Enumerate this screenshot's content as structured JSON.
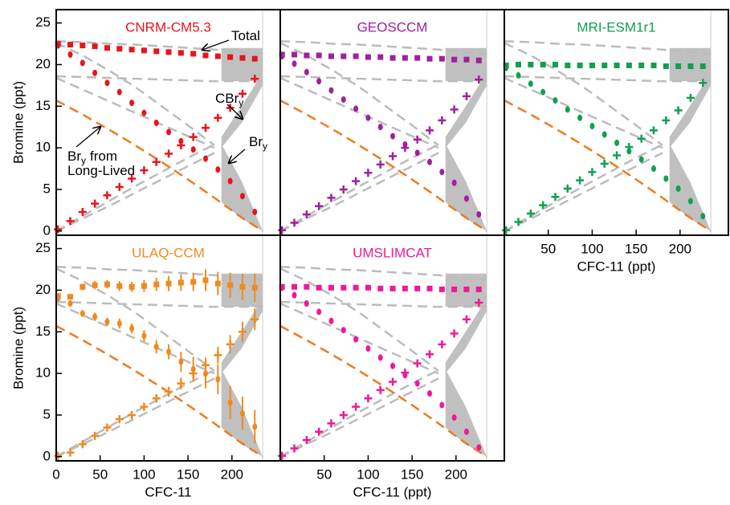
{
  "chart_data": [
    {
      "type": "scatter",
      "title": "CNRM-CM5.3",
      "color": "#e8141c",
      "y_label": "Bromine (ppt)",
      "ylim": [
        -0.5,
        26.6
      ],
      "xlim": [
        0,
        255
      ],
      "yticks": [
        0,
        5,
        10,
        15,
        20,
        25
      ],
      "x": [
        2,
        16,
        30,
        44,
        58,
        72,
        86,
        100,
        114,
        128,
        142,
        156,
        170,
        184,
        198,
        212,
        226
      ],
      "series": [
        {
          "marker": "square",
          "values": [
            22.5,
            22.4,
            22.3,
            22.2,
            22.0,
            21.9,
            21.8,
            21.7,
            21.6,
            21.5,
            21.4,
            21.3,
            21.1,
            21.0,
            20.9,
            20.8,
            20.7
          ]
        },
        {
          "marker": "plus",
          "values": [
            0.2,
            1.2,
            2.3,
            3.3,
            4.3,
            5.3,
            6.3,
            7.3,
            8.3,
            9.3,
            10.3,
            11.3,
            12.4,
            13.6,
            14.8,
            16.5,
            18.3
          ]
        },
        {
          "marker": "circle",
          "values": [
            22.3,
            21.2,
            20.2,
            19.0,
            17.8,
            16.7,
            15.4,
            14.2,
            13.0,
            11.9,
            10.8,
            9.8,
            8.7,
            7.4,
            6.0,
            4.2,
            2.3
          ]
        }
      ],
      "annotations": [
        {
          "text": "Total"
        },
        {
          "text": "CBr",
          "sub": "y"
        },
        {
          "text": "Br",
          "sub": "y"
        },
        {
          "text": "Br",
          "sub": "y",
          "tail": "from"
        },
        {
          "text": "Long-Lived"
        }
      ]
    },
    {
      "type": "scatter",
      "title": "GEOSCCM",
      "color": "#a020a0",
      "ylim": [
        -0.5,
        26.6
      ],
      "xlim": [
        0,
        255
      ],
      "x": [
        2,
        16,
        30,
        44,
        58,
        72,
        86,
        100,
        114,
        128,
        142,
        156,
        170,
        184,
        198,
        212,
        226
      ],
      "series": [
        {
          "marker": "square",
          "values": [
            21.2,
            21.2,
            21.1,
            21.1,
            21.0,
            21.0,
            21.0,
            20.9,
            20.9,
            20.8,
            20.8,
            20.8,
            20.7,
            20.7,
            20.6,
            20.6,
            20.5
          ]
        },
        {
          "marker": "plus",
          "values": [
            0.1,
            1.0,
            2.0,
            3.0,
            4.0,
            5.0,
            6.0,
            7.0,
            8.0,
            9.0,
            10.0,
            11.0,
            12.1,
            13.3,
            14.6,
            16.2,
            18.2
          ]
        },
        {
          "marker": "circle",
          "values": [
            21.0,
            20.1,
            19.1,
            18.0,
            16.9,
            15.8,
            14.7,
            13.6,
            12.5,
            11.4,
            10.4,
            9.4,
            8.3,
            7.1,
            5.8,
            3.9,
            2.0
          ]
        }
      ]
    },
    {
      "type": "scatter",
      "title": "MRI-ESM1r1",
      "color": "#10a050",
      "x_label": "CFC-11 (ppt)",
      "ylim": [
        -0.5,
        26.6
      ],
      "xlim": [
        0,
        255
      ],
      "xticks": [
        50,
        100,
        150,
        200
      ],
      "x": [
        2,
        16,
        30,
        44,
        58,
        72,
        86,
        100,
        114,
        128,
        142,
        156,
        170,
        184,
        198,
        212,
        226
      ],
      "series": [
        {
          "marker": "square",
          "values": [
            19.9,
            20.0,
            20.0,
            20.0,
            20.0,
            19.9,
            19.9,
            19.9,
            19.9,
            19.9,
            19.9,
            19.9,
            19.9,
            19.8,
            19.8,
            19.8,
            19.8
          ]
        },
        {
          "marker": "plus",
          "values": [
            0.1,
            1.1,
            2.1,
            3.1,
            4.1,
            5.1,
            6.1,
            7.1,
            8.1,
            9.1,
            10.1,
            11.1,
            12.1,
            13.3,
            14.5,
            16.0,
            17.8
          ]
        },
        {
          "marker": "circle",
          "values": [
            19.6,
            18.7,
            17.7,
            16.7,
            15.7,
            14.6,
            13.6,
            12.6,
            11.6,
            10.6,
            9.6,
            8.6,
            7.5,
            6.3,
            5.1,
            3.6,
            1.8
          ]
        }
      ]
    },
    {
      "type": "scatter",
      "title": "ULAQ-CCM",
      "color": "#f08a1e",
      "y_label": "Bromine (ppt)",
      "x_label": "CFC-11",
      "ylim": [
        -0.5,
        26.6
      ],
      "xlim": [
        0,
        255
      ],
      "yticks": [
        0,
        5,
        10,
        15,
        20,
        25
      ],
      "xticks": [
        0,
        50,
        100,
        150,
        200
      ],
      "x": [
        2,
        16,
        30,
        44,
        58,
        72,
        86,
        100,
        114,
        128,
        142,
        156,
        170,
        184,
        198,
        212,
        226
      ],
      "series": [
        {
          "marker": "square",
          "values": [
            19.3,
            19.2,
            20.4,
            20.6,
            20.7,
            20.5,
            20.4,
            20.5,
            20.7,
            20.8,
            20.9,
            21.0,
            21.2,
            20.8,
            20.6,
            20.4,
            20.3
          ],
          "errors": [
            0.3,
            0.3,
            0.4,
            0.5,
            0.5,
            0.6,
            0.6,
            0.7,
            0.8,
            0.9,
            1.0,
            1.1,
            1.3,
            1.4,
            1.5,
            1.6,
            1.7
          ]
        },
        {
          "marker": "plus",
          "values": [
            0.1,
            0.5,
            1.5,
            2.5,
            3.5,
            4.5,
            5.0,
            6.0,
            7.0,
            7.8,
            8.8,
            10.0,
            11.0,
            12.2,
            13.5,
            15.0,
            16.5
          ],
          "errors": [
            0.2,
            0.2,
            0.3,
            0.3,
            0.3,
            0.4,
            0.4,
            0.5,
            0.5,
            0.6,
            0.7,
            0.8,
            0.9,
            1.0,
            1.1,
            1.2,
            1.3
          ]
        },
        {
          "marker": "circle",
          "values": [
            19.0,
            18.4,
            17.2,
            16.8,
            16.2,
            16.0,
            15.4,
            14.5,
            13.2,
            12.6,
            11.4,
            10.5,
            10.0,
            9.3,
            6.5,
            5.2,
            3.6
          ],
          "errors": [
            0.3,
            0.3,
            0.4,
            0.5,
            0.5,
            0.6,
            0.6,
            0.7,
            0.8,
            0.9,
            1.2,
            1.5,
            1.8,
            1.8,
            2.0,
            2.0,
            2.0
          ]
        }
      ]
    },
    {
      "type": "scatter",
      "title": "UMSLIMCAT",
      "color": "#f0189a",
      "x_label": "CFC-11 (ppt)",
      "ylim": [
        -0.5,
        26.6
      ],
      "xlim": [
        0,
        255
      ],
      "xticks": [
        50,
        100,
        150,
        200
      ],
      "x": [
        2,
        16,
        30,
        44,
        58,
        72,
        86,
        100,
        114,
        128,
        142,
        156,
        170,
        184,
        198,
        212,
        226
      ],
      "series": [
        {
          "marker": "square",
          "values": [
            20.4,
            20.4,
            20.4,
            20.3,
            20.3,
            20.3,
            20.3,
            20.3,
            20.2,
            20.2,
            20.2,
            20.2,
            20.2,
            20.1,
            20.1,
            20.1,
            20.1
          ]
        },
        {
          "marker": "plus",
          "values": [
            0.1,
            1.0,
            2.0,
            3.0,
            4.0,
            5.0,
            6.0,
            7.0,
            8.0,
            9.0,
            10.1,
            11.2,
            12.3,
            13.5,
            14.8,
            16.5,
            18.5
          ]
        },
        {
          "marker": "circle",
          "values": [
            20.3,
            19.4,
            18.4,
            17.4,
            16.3,
            15.2,
            14.1,
            13.0,
            11.9,
            10.9,
            9.8,
            8.8,
            7.6,
            6.2,
            4.7,
            3.0,
            1.1
          ]
        }
      ]
    }
  ],
  "reference": {
    "x": [
      0,
      30,
      60,
      90,
      120,
      150,
      180,
      210,
      235
    ],
    "lines": [
      {
        "color": "#bbbbbb",
        "values": [
          22.8,
          22.7,
          22.5,
          22.4,
          22.2,
          22.0,
          21.8,
          21.5,
          21.3
        ]
      },
      {
        "color": "#bbbbbb",
        "values": [
          18.6,
          18.5,
          18.4,
          18.3,
          18.2,
          18.1,
          18.0,
          18.0,
          18.0
        ]
      },
      {
        "color": "#bbbbbb",
        "values": [
          22.6,
          21.1,
          19.3,
          17.3,
          15.0,
          12.7,
          10.3,
          null,
          null
        ]
      },
      {
        "color": "#bbbbbb",
        "values": [
          18.4,
          17.0,
          15.6,
          14.2,
          12.8,
          11.4,
          10.0,
          null,
          null
        ]
      },
      {
        "color": "#bbbbbb",
        "values": [
          0,
          1.8,
          3.6,
          5.4,
          7.1,
          8.8,
          10.4,
          null,
          null
        ]
      },
      {
        "color": "#bbbbbb",
        "values": [
          0,
          1.5,
          3.0,
          4.6,
          6.2,
          7.8,
          9.4,
          null,
          null
        ]
      },
      {
        "color": "#f07820",
        "values": [
          15.7,
          14.0,
          12.2,
          10.3,
          8.3,
          6.2,
          4.0,
          1.7,
          0
        ]
      }
    ],
    "bands": [
      {
        "x": [
          188,
          211,
          235
        ],
        "lower": [
          18,
          18,
          18
        ],
        "upper": [
          22,
          22,
          22
        ]
      },
      {
        "x": [
          188,
          211,
          235
        ],
        "lower": [
          10.0,
          13,
          17.5
        ],
        "upper": [
          11.3,
          15,
          19
        ]
      },
      {
        "x": [
          188,
          211,
          235
        ],
        "lower": [
          3.5,
          1.5,
          0
        ],
        "upper": [
          10.5,
          6,
          0
        ]
      }
    ],
    "band_color": "#c0c0c0"
  }
}
